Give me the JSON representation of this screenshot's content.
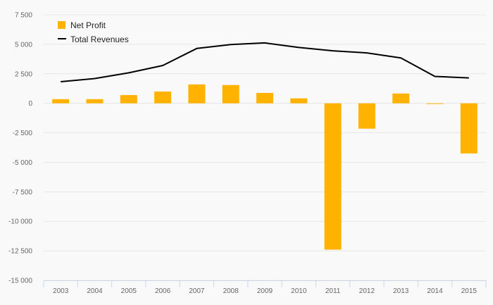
{
  "chart_data": {
    "type": "bar",
    "title": "",
    "xlabel": "",
    "ylabel": "",
    "categories": [
      "2003",
      "2004",
      "2005",
      "2006",
      "2007",
      "2008",
      "2009",
      "2010",
      "2011",
      "2012",
      "2013",
      "2014",
      "2015"
    ],
    "series": [
      {
        "name": "Net Profit",
        "type": "bar",
        "color": "#ffb300",
        "values": [
          350,
          350,
          700,
          1000,
          1600,
          1550,
          880,
          420,
          -12400,
          -2150,
          830,
          -50,
          -4250
        ]
      },
      {
        "name": "Total Revenues",
        "type": "line",
        "color": "#000000",
        "values": [
          1830,
          2100,
          2580,
          3200,
          4650,
          4980,
          5120,
          4730,
          4450,
          4270,
          3850,
          2280,
          2150
        ]
      }
    ],
    "ylim": [
      -15000,
      7500
    ],
    "yticks": [
      7500,
      5000,
      2500,
      0,
      -2500,
      -5000,
      -7500,
      -10000,
      -12500,
      -15000
    ],
    "ytick_labels": [
      "7 500",
      "5 000",
      "2 500",
      "0",
      "-2 500",
      "-5 000",
      "-7 500",
      "-10 000",
      "-12 500",
      "-15 000"
    ],
    "grid": true,
    "legend_position": "top-left"
  }
}
